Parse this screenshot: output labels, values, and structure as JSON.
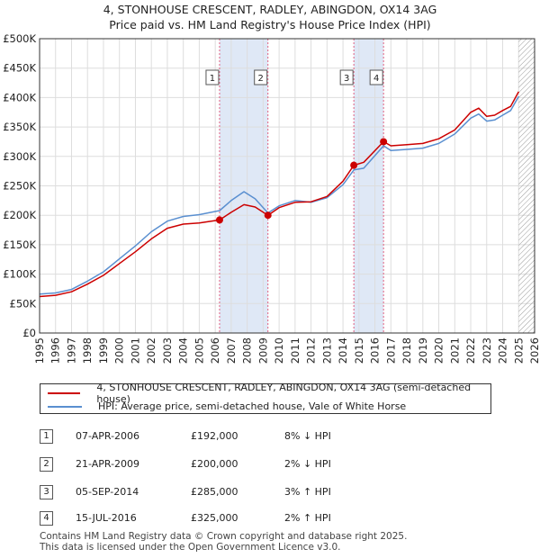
{
  "title_line1": "4, STONHOUSE CRESCENT, RADLEY, ABINGDON, OX14 3AG",
  "title_line2": "Price paid vs. HM Land Registry's House Price Index (HPI)",
  "colors": {
    "property": "#cc0000",
    "hpi": "#5a8fd0",
    "marker_line": "#e06080",
    "band": "#dfe8f6",
    "grid": "#dddddd",
    "future_hatch": "#999999"
  },
  "chart_data": {
    "type": "line",
    "xlabel": "",
    "ylabel": "",
    "xlim": [
      1995,
      2026
    ],
    "ylim": [
      0,
      500000
    ],
    "y_ticks": [
      0,
      50000,
      100000,
      150000,
      200000,
      250000,
      300000,
      350000,
      400000,
      450000,
      500000
    ],
    "y_tick_labels": [
      "£0",
      "£50K",
      "£100K",
      "£150K",
      "£200K",
      "£250K",
      "£300K",
      "£350K",
      "£400K",
      "£450K",
      "£500K"
    ],
    "x_ticks": [
      1995,
      1996,
      1997,
      1998,
      1999,
      2000,
      2001,
      2002,
      2003,
      2004,
      2005,
      2006,
      2007,
      2008,
      2009,
      2010,
      2011,
      2012,
      2013,
      2014,
      2015,
      2016,
      2017,
      2018,
      2019,
      2020,
      2021,
      2022,
      2023,
      2024,
      2025,
      2026
    ],
    "x_tick_labels": [
      "1995",
      "1996",
      "1997",
      "1998",
      "1999",
      "2000",
      "2001",
      "2002",
      "2003",
      "2004",
      "2005",
      "2006",
      "2007",
      "2008",
      "2009",
      "2010",
      "2011",
      "2012",
      "2013",
      "2014",
      "2015",
      "2016",
      "2017",
      "2018",
      "2019",
      "2020",
      "2021",
      "2022",
      "2023",
      "2024",
      "2025",
      "2026"
    ],
    "grid": true,
    "future_from": 2025.0,
    "shaded_bands": [
      [
        2006.27,
        2009.3
      ],
      [
        2014.68,
        2016.54
      ]
    ],
    "series": [
      {
        "name": "4, STONHOUSE CRESCENT, RADLEY, ABINGDON, OX14 3AG (semi-detached house)",
        "color": "#cc0000",
        "x": [
          1995.0,
          1996.0,
          1997.0,
          1998.0,
          1999.0,
          2000.0,
          2001.0,
          2002.0,
          2003.0,
          2004.0,
          2005.0,
          2006.27,
          2007.0,
          2007.8,
          2008.5,
          2009.3,
          2010.0,
          2011.0,
          2012.0,
          2013.0,
          2014.0,
          2014.68,
          2015.3,
          2016.54,
          2017.0,
          2018.0,
          2019.0,
          2020.0,
          2021.0,
          2022.0,
          2022.5,
          2023.0,
          2023.5,
          2024.0,
          2024.5,
          2025.0
        ],
        "y": [
          62000,
          64000,
          70000,
          83000,
          98000,
          118000,
          138000,
          160000,
          178000,
          185000,
          187000,
          192000,
          205000,
          218000,
          214000,
          200000,
          213000,
          222000,
          223000,
          232000,
          258000,
          285000,
          290000,
          325000,
          318000,
          320000,
          322000,
          330000,
          345000,
          375000,
          382000,
          368000,
          370000,
          378000,
          385000,
          410000
        ]
      },
      {
        "name": "HPI: Average price, semi-detached house, Vale of White Horse",
        "color": "#5a8fd0",
        "x": [
          1995.0,
          1996.0,
          1997.0,
          1998.0,
          1999.0,
          2000.0,
          2001.0,
          2002.0,
          2003.0,
          2004.0,
          2005.0,
          2006.27,
          2007.0,
          2007.8,
          2008.5,
          2009.3,
          2010.0,
          2011.0,
          2012.0,
          2013.0,
          2014.0,
          2014.68,
          2015.3,
          2016.54,
          2017.0,
          2018.0,
          2019.0,
          2020.0,
          2021.0,
          2022.0,
          2022.5,
          2023.0,
          2023.5,
          2024.0,
          2024.5,
          2025.0
        ],
        "y": [
          66000,
          68000,
          74000,
          88000,
          104000,
          126000,
          148000,
          172000,
          190000,
          198000,
          201000,
          208000,
          225000,
          240000,
          228000,
          204000,
          216000,
          225000,
          222000,
          230000,
          252000,
          277000,
          280000,
          318000,
          310000,
          312000,
          314000,
          322000,
          338000,
          365000,
          372000,
          360000,
          362000,
          370000,
          378000,
          402000
        ]
      }
    ],
    "sales": [
      {
        "label": "1",
        "x": 2006.27,
        "y": 192000
      },
      {
        "label": "2",
        "x": 2009.3,
        "y": 200000
      },
      {
        "label": "3",
        "x": 2014.68,
        "y": 285000
      },
      {
        "label": "4",
        "x": 2016.54,
        "y": 325000
      }
    ]
  },
  "legend": {
    "property": "4, STONHOUSE CRESCENT, RADLEY, ABINGDON, OX14 3AG (semi-detached house)",
    "hpi": "HPI: Average price, semi-detached house, Vale of White Horse"
  },
  "transactions": [
    {
      "num": "1",
      "date": "07-APR-2006",
      "price": "£192,000",
      "hpi": "8% ↓ HPI"
    },
    {
      "num": "2",
      "date": "21-APR-2009",
      "price": "£200,000",
      "hpi": "2% ↓ HPI"
    },
    {
      "num": "3",
      "date": "05-SEP-2014",
      "price": "£285,000",
      "hpi": "3% ↑ HPI"
    },
    {
      "num": "4",
      "date": "15-JUL-2016",
      "price": "£325,000",
      "hpi": "2% ↑ HPI"
    }
  ],
  "footer": {
    "line1": "Contains HM Land Registry data © Crown copyright and database right 2025.",
    "line2": "This data is licensed under the Open Government Licence v3.0."
  }
}
